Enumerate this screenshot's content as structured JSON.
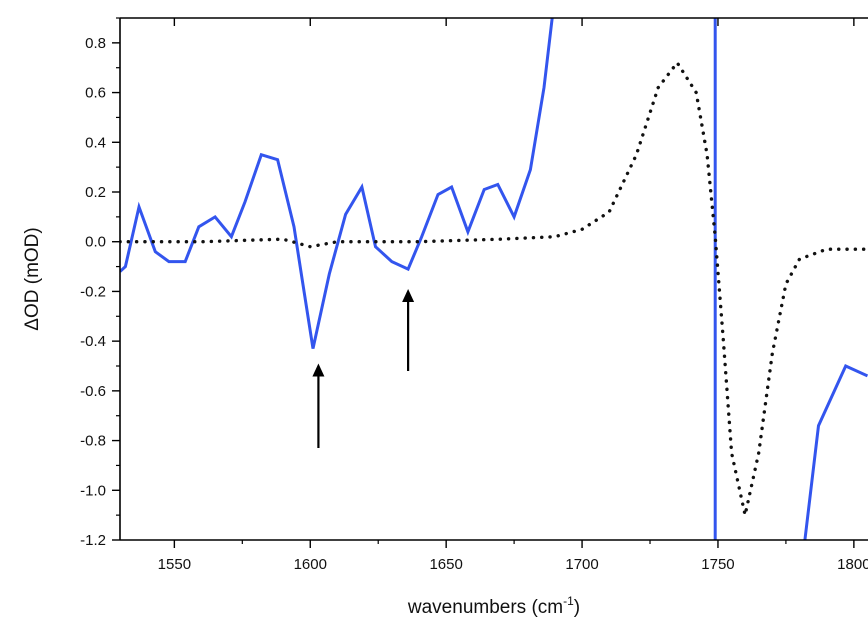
{
  "chart_data": {
    "type": "line",
    "xlabel": "wavenumbers (cm",
    "xlabel_sup": "-1",
    "xlabel_close": ")",
    "ylabel": "ΔOD (mOD)",
    "xlim": [
      1530,
      1805
    ],
    "ylim": [
      -1.2,
      0.9
    ],
    "x_ticks": [
      1550,
      1600,
      1650,
      1700,
      1750,
      1800
    ],
    "x_tick_labels": [
      "1550",
      "1600",
      "1650",
      "1700",
      "1750",
      "1800"
    ],
    "y_ticks": [
      0.8,
      0.6,
      0.4,
      0.2,
      0.0,
      -0.2,
      -0.4,
      -0.6,
      -0.8,
      -1.0,
      -1.2
    ],
    "y_tick_labels": [
      "0.8",
      "0.6",
      "0.4",
      "0.2",
      "0.0",
      "-0.2",
      "-0.4",
      "-0.6",
      "-0.8",
      "-1.0",
      "-1.2"
    ],
    "grid": false,
    "legend": "none",
    "series": [
      {
        "style": "solid",
        "color": "#3355ee",
        "points": [
          [
            1530,
            -0.12
          ],
          [
            1532,
            -0.1
          ],
          [
            1537,
            0.14
          ],
          [
            1543,
            -0.04
          ],
          [
            1548,
            -0.08
          ],
          [
            1554,
            -0.08
          ],
          [
            1559,
            0.06
          ],
          [
            1565,
            0.1
          ],
          [
            1571,
            0.02
          ],
          [
            1576,
            0.16
          ],
          [
            1582,
            0.35
          ],
          [
            1588,
            0.33
          ],
          [
            1594,
            0.06
          ],
          [
            1597,
            -0.15
          ],
          [
            1601,
            -0.43
          ],
          [
            1607,
            -0.13
          ],
          [
            1613,
            0.11
          ],
          [
            1619,
            0.22
          ],
          [
            1624,
            -0.02
          ],
          [
            1630,
            -0.08
          ],
          [
            1636,
            -0.11
          ],
          [
            1641,
            0.02
          ],
          [
            1647,
            0.19
          ],
          [
            1652,
            0.22
          ],
          [
            1658,
            0.04
          ],
          [
            1664,
            0.21
          ],
          [
            1669,
            0.23
          ],
          [
            1675,
            0.1
          ],
          [
            1681,
            0.29
          ],
          [
            1686,
            0.62
          ],
          [
            1689,
            0.9
          ]
        ]
      },
      {
        "style": "solid",
        "color": "#3355ee",
        "points": [
          [
            1749,
            0.9
          ],
          [
            1749,
            -1.2
          ]
        ]
      },
      {
        "style": "solid",
        "color": "#3355ee",
        "points": [
          [
            1782,
            -1.2
          ],
          [
            1787,
            -0.74
          ],
          [
            1797,
            -0.5
          ],
          [
            1805,
            -0.54
          ]
        ]
      },
      {
        "style": "dotted",
        "color": "#111111",
        "points": [
          [
            1530,
            0.0
          ],
          [
            1560,
            0.0
          ],
          [
            1590,
            0.01
          ],
          [
            1600,
            -0.02
          ],
          [
            1610,
            0.0
          ],
          [
            1640,
            0.0
          ],
          [
            1670,
            0.01
          ],
          [
            1690,
            0.02
          ],
          [
            1700,
            0.05
          ],
          [
            1710,
            0.12
          ],
          [
            1720,
            0.35
          ],
          [
            1728,
            0.62
          ],
          [
            1735,
            0.72
          ],
          [
            1742,
            0.6
          ],
          [
            1746,
            0.35
          ],
          [
            1749,
            0.02
          ],
          [
            1752,
            -0.4
          ],
          [
            1755,
            -0.85
          ],
          [
            1760,
            -1.1
          ],
          [
            1765,
            -0.85
          ],
          [
            1770,
            -0.45
          ],
          [
            1775,
            -0.17
          ],
          [
            1780,
            -0.07
          ],
          [
            1790,
            -0.03
          ],
          [
            1805,
            -0.03
          ]
        ]
      }
    ],
    "annotations": [
      {
        "type": "arrow",
        "x": 1603,
        "y_from": -0.83,
        "y_to": -0.49
      },
      {
        "type": "arrow",
        "x": 1636,
        "y_from": -0.52,
        "y_to": -0.19
      }
    ]
  }
}
